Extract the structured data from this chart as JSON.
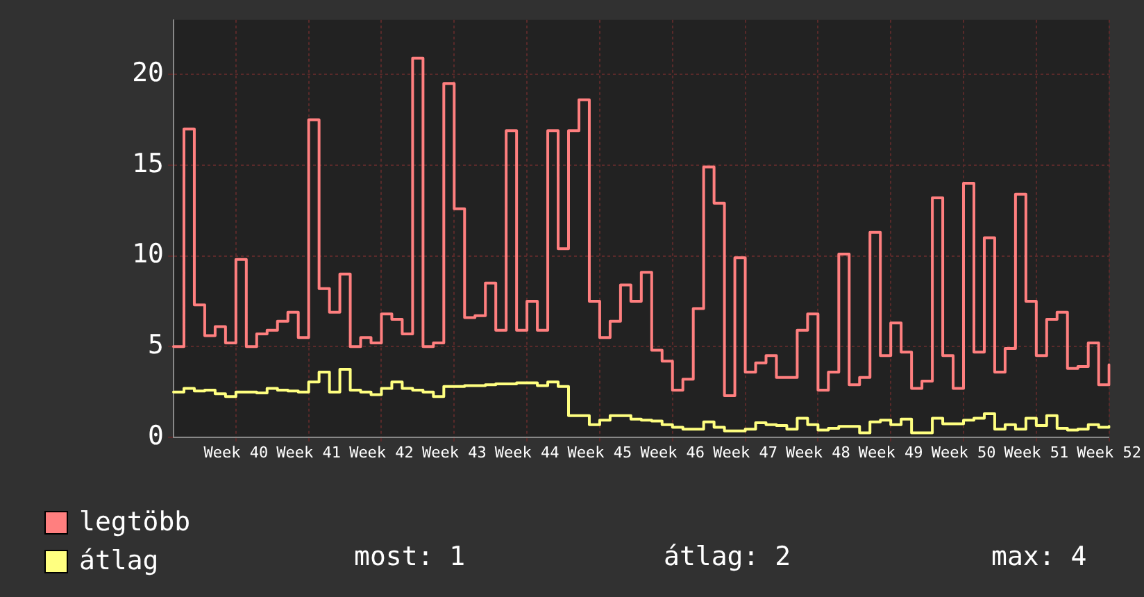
{
  "chart_data": {
    "type": "step",
    "categories": [
      null,
      null,
      null,
      null,
      null,
      null,
      "Week 40",
      null,
      null,
      null,
      null,
      null,
      null,
      "Week 41",
      null,
      null,
      null,
      null,
      null,
      null,
      "Week 42",
      null,
      null,
      null,
      null,
      null,
      null,
      "Week 43",
      null,
      null,
      null,
      null,
      null,
      null,
      "Week 44",
      null,
      null,
      null,
      null,
      null,
      null,
      "Week 45",
      null,
      null,
      null,
      null,
      null,
      null,
      "Week 46",
      null,
      null,
      null,
      null,
      null,
      null,
      "Week 47",
      null,
      null,
      null,
      null,
      null,
      null,
      "Week 48",
      null,
      null,
      null,
      null,
      null,
      null,
      "Week 49",
      null,
      null,
      null,
      null,
      null,
      null,
      "Week 50",
      null,
      null,
      null,
      null,
      null,
      null,
      "Week 51",
      null,
      null,
      null,
      null,
      null,
      null,
      "Week 52"
    ],
    "series": [
      {
        "name": "legtöbb",
        "color": "#ff7f7f",
        "values": [
          5.0,
          17.0,
          7.3,
          5.6,
          6.1,
          5.2,
          9.8,
          5.0,
          5.7,
          5.9,
          6.4,
          6.9,
          5.5,
          17.5,
          8.2,
          6.9,
          9.0,
          5.0,
          5.5,
          5.2,
          6.8,
          6.5,
          5.7,
          20.9,
          5.0,
          5.2,
          19.5,
          12.6,
          6.6,
          6.7,
          8.5,
          5.9,
          16.9,
          5.9,
          7.5,
          5.9,
          16.9,
          10.4,
          16.9,
          18.6,
          7.5,
          5.5,
          6.4,
          8.4,
          7.5,
          9.1,
          4.8,
          4.2,
          2.6,
          3.2,
          7.1,
          14.9,
          12.9,
          2.3,
          9.9,
          3.6,
          4.1,
          4.5,
          3.3,
          3.3,
          5.9,
          6.8,
          2.6,
          3.6,
          10.1,
          2.9,
          3.3,
          11.3,
          4.5,
          6.3,
          4.7,
          2.7,
          3.1,
          13.2,
          4.5,
          2.7,
          14.0,
          4.7,
          11.0,
          3.6,
          4.9,
          13.4,
          7.5,
          4.5,
          6.5,
          6.9,
          3.8,
          3.9,
          5.2,
          2.9,
          4.0
        ]
      },
      {
        "name": "átlag",
        "color": "#ffff80",
        "values": [
          2.5,
          2.7,
          2.55,
          2.6,
          2.4,
          2.25,
          2.5,
          2.5,
          2.45,
          2.7,
          2.6,
          2.55,
          2.5,
          3.05,
          3.6,
          2.5,
          3.75,
          2.6,
          2.5,
          2.35,
          2.7,
          3.05,
          2.7,
          2.6,
          2.5,
          2.25,
          2.8,
          2.8,
          2.85,
          2.85,
          2.9,
          2.95,
          2.95,
          3.0,
          3.0,
          2.85,
          3.05,
          2.8,
          1.2,
          1.2,
          0.7,
          0.95,
          1.2,
          1.2,
          1.0,
          0.95,
          0.9,
          0.7,
          0.55,
          0.45,
          0.45,
          0.85,
          0.55,
          0.35,
          0.35,
          0.45,
          0.8,
          0.7,
          0.65,
          0.45,
          1.05,
          0.7,
          0.4,
          0.5,
          0.6,
          0.6,
          0.25,
          0.85,
          0.95,
          0.7,
          1.0,
          0.25,
          0.25,
          1.05,
          0.75,
          0.75,
          0.95,
          1.05,
          1.3,
          0.45,
          0.7,
          0.45,
          1.05,
          0.65,
          1.2,
          0.5,
          0.4,
          0.45,
          0.7,
          0.55,
          0.6
        ]
      }
    ],
    "ylim": [
      0,
      23
    ],
    "yticks": [
      0,
      5,
      10,
      15,
      20
    ],
    "grid": true,
    "legend": "bottom",
    "marker": "none",
    "line_style": "solid",
    "annotations": [
      "most: 1",
      "átlag: 2",
      "max: 4"
    ]
  }
}
